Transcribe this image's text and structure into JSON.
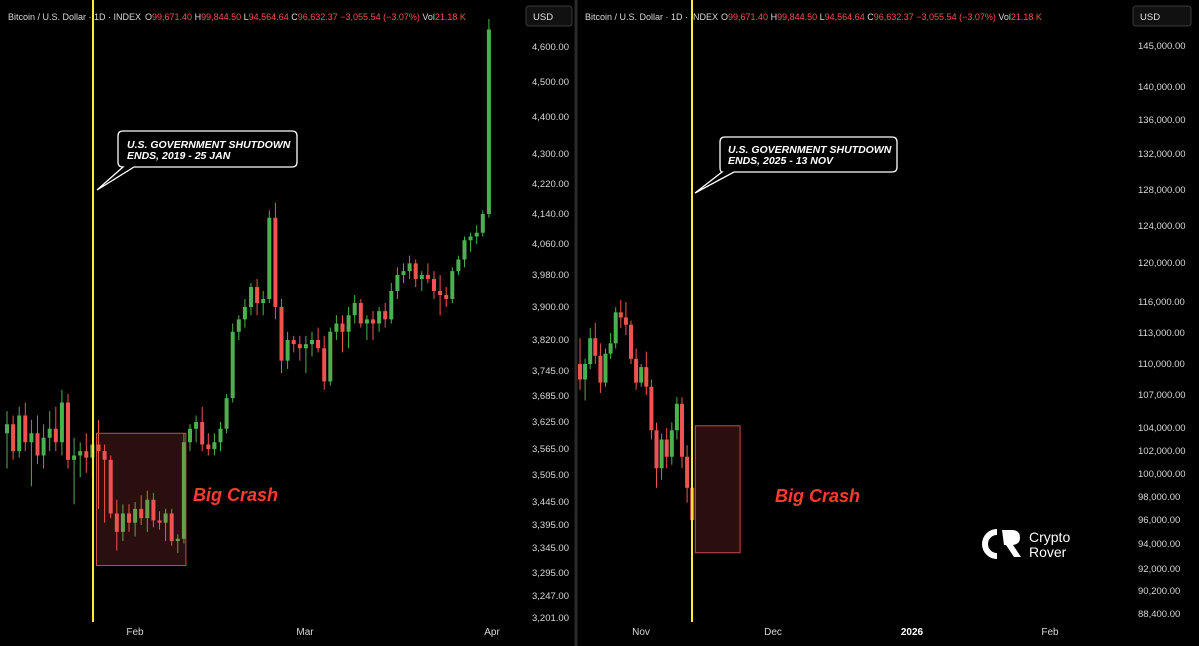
{
  "header": {
    "symbol": "Bitcoin / U.S. Dollar",
    "interval": "1D",
    "source": "INDEX",
    "open_label": "O",
    "open_value": "99,671.40",
    "high_label": "H",
    "high_value": "99,844.50",
    "low_label": "L",
    "low_value": "94,564.64",
    "close_label": "C",
    "close_value": "96,632.37",
    "change": "−3,055.54 (−3.07%)",
    "vol_label": "Vol",
    "vol_value": "21.18 K"
  },
  "currency_button": "USD",
  "brand": {
    "line1": "Crypto",
    "line2": "Rover"
  },
  "colors": {
    "up": "#4caf50",
    "down": "#ef5350",
    "vline": "#ffeb3b",
    "crash_text": "#ff3b30",
    "crash_box": "#ef5350"
  },
  "chart_data": [
    {
      "type": "candlestick",
      "panel": "left",
      "y_tick_labels": [
        "4,600.00",
        "4,500.00",
        "4,400.00",
        "4,300.00",
        "4,220.00",
        "4,140.00",
        "4,060.00",
        "3,980.00",
        "3,900.00",
        "3,820.00",
        "3,745.00",
        "3,685.00",
        "3,625.00",
        "3,565.00",
        "3,505.00",
        "3,445.00",
        "3,395.00",
        "3,345.00",
        "3,295.00",
        "3,247.00",
        "3,201.00"
      ],
      "x_tick_labels": [
        "Feb",
        "Mar",
        "Apr"
      ],
      "event_line_label": "U.S. GOVERNMENT SHUTDOWN ENDS, 2019 - 25 JAN",
      "annotation": "Big Crash",
      "candles": [
        {
          "o": 3600,
          "h": 3650,
          "l": 3520,
          "c": 3620
        },
        {
          "o": 3620,
          "h": 3640,
          "l": 3540,
          "c": 3560
        },
        {
          "o": 3560,
          "h": 3660,
          "l": 3545,
          "c": 3640
        },
        {
          "o": 3640,
          "h": 3670,
          "l": 3560,
          "c": 3580
        },
        {
          "o": 3580,
          "h": 3630,
          "l": 3480,
          "c": 3600
        },
        {
          "o": 3600,
          "h": 3640,
          "l": 3530,
          "c": 3550
        },
        {
          "o": 3550,
          "h": 3620,
          "l": 3520,
          "c": 3590
        },
        {
          "o": 3590,
          "h": 3650,
          "l": 3560,
          "c": 3610
        },
        {
          "o": 3610,
          "h": 3660,
          "l": 3560,
          "c": 3580
        },
        {
          "o": 3580,
          "h": 3700,
          "l": 3550,
          "c": 3670
        },
        {
          "o": 3670,
          "h": 3690,
          "l": 3520,
          "c": 3540
        },
        {
          "o": 3540,
          "h": 3590,
          "l": 3440,
          "c": 3550
        },
        {
          "o": 3550,
          "h": 3580,
          "l": 3500,
          "c": 3560
        },
        {
          "o": 3560,
          "h": 3600,
          "l": 3510,
          "c": 3545
        },
        {
          "o": 3545,
          "h": 3590,
          "l": 3500,
          "c": 3575
        },
        {
          "o": 3575,
          "h": 3630,
          "l": 3430,
          "c": 3560
        },
        {
          "o": 3560,
          "h": 3575,
          "l": 3400,
          "c": 3540
        },
        {
          "o": 3540,
          "h": 3550,
          "l": 3410,
          "c": 3420
        },
        {
          "o": 3420,
          "h": 3450,
          "l": 3340,
          "c": 3380
        },
        {
          "o": 3380,
          "h": 3440,
          "l": 3360,
          "c": 3420
        },
        {
          "o": 3420,
          "h": 3440,
          "l": 3380,
          "c": 3400
        },
        {
          "o": 3400,
          "h": 3445,
          "l": 3370,
          "c": 3430
        },
        {
          "o": 3430,
          "h": 3460,
          "l": 3395,
          "c": 3410
        },
        {
          "o": 3410,
          "h": 3470,
          "l": 3380,
          "c": 3450
        },
        {
          "o": 3450,
          "h": 3465,
          "l": 3390,
          "c": 3405
        },
        {
          "o": 3405,
          "h": 3425,
          "l": 3385,
          "c": 3400
        },
        {
          "o": 3400,
          "h": 3430,
          "l": 3360,
          "c": 3420
        },
        {
          "o": 3420,
          "h": 3430,
          "l": 3350,
          "c": 3360
        },
        {
          "o": 3360,
          "h": 3375,
          "l": 3335,
          "c": 3365
        },
        {
          "o": 3365,
          "h": 3600,
          "l": 3355,
          "c": 3580
        },
        {
          "o": 3580,
          "h": 3620,
          "l": 3560,
          "c": 3610
        },
        {
          "o": 3610,
          "h": 3640,
          "l": 3580,
          "c": 3625
        },
        {
          "o": 3625,
          "h": 3660,
          "l": 3560,
          "c": 3575
        },
        {
          "o": 3575,
          "h": 3600,
          "l": 3550,
          "c": 3565
        },
        {
          "o": 3565,
          "h": 3600,
          "l": 3550,
          "c": 3580
        },
        {
          "o": 3580,
          "h": 3625,
          "l": 3560,
          "c": 3610
        },
        {
          "o": 3610,
          "h": 3690,
          "l": 3600,
          "c": 3680
        },
        {
          "o": 3680,
          "h": 3860,
          "l": 3670,
          "c": 3840
        },
        {
          "o": 3840,
          "h": 3880,
          "l": 3820,
          "c": 3870
        },
        {
          "o": 3870,
          "h": 3920,
          "l": 3850,
          "c": 3900
        },
        {
          "o": 3900,
          "h": 3960,
          "l": 3880,
          "c": 3950
        },
        {
          "o": 3950,
          "h": 3970,
          "l": 3880,
          "c": 3910
        },
        {
          "o": 3910,
          "h": 3940,
          "l": 3880,
          "c": 3920
        },
        {
          "o": 3920,
          "h": 4150,
          "l": 3910,
          "c": 4130
        },
        {
          "o": 4130,
          "h": 4170,
          "l": 3870,
          "c": 3900
        },
        {
          "o": 3900,
          "h": 3920,
          "l": 3740,
          "c": 3770
        },
        {
          "o": 3770,
          "h": 3840,
          "l": 3750,
          "c": 3820
        },
        {
          "o": 3820,
          "h": 3830,
          "l": 3790,
          "c": 3810
        },
        {
          "o": 3810,
          "h": 3830,
          "l": 3770,
          "c": 3800
        },
        {
          "o": 3800,
          "h": 3830,
          "l": 3740,
          "c": 3810
        },
        {
          "o": 3810,
          "h": 3840,
          "l": 3780,
          "c": 3820
        },
        {
          "o": 3820,
          "h": 3850,
          "l": 3790,
          "c": 3800
        },
        {
          "o": 3800,
          "h": 3830,
          "l": 3700,
          "c": 3720
        },
        {
          "o": 3720,
          "h": 3850,
          "l": 3710,
          "c": 3840
        },
        {
          "o": 3840,
          "h": 3880,
          "l": 3820,
          "c": 3860
        },
        {
          "o": 3860,
          "h": 3880,
          "l": 3790,
          "c": 3840
        },
        {
          "o": 3840,
          "h": 3900,
          "l": 3800,
          "c": 3880
        },
        {
          "o": 3880,
          "h": 3930,
          "l": 3860,
          "c": 3910
        },
        {
          "o": 3910,
          "h": 3920,
          "l": 3850,
          "c": 3860
        },
        {
          "o": 3860,
          "h": 3880,
          "l": 3820,
          "c": 3870
        },
        {
          "o": 3870,
          "h": 3890,
          "l": 3820,
          "c": 3860
        },
        {
          "o": 3860,
          "h": 3900,
          "l": 3840,
          "c": 3890
        },
        {
          "o": 3890,
          "h": 3910,
          "l": 3850,
          "c": 3870
        },
        {
          "o": 3870,
          "h": 3960,
          "l": 3860,
          "c": 3940
        },
        {
          "o": 3940,
          "h": 4000,
          "l": 3920,
          "c": 3980
        },
        {
          "o": 3980,
          "h": 4010,
          "l": 3960,
          "c": 3990
        },
        {
          "o": 3990,
          "h": 4030,
          "l": 3970,
          "c": 4010
        },
        {
          "o": 4010,
          "h": 4020,
          "l": 3950,
          "c": 3970
        },
        {
          "o": 3970,
          "h": 3990,
          "l": 3940,
          "c": 3980
        },
        {
          "o": 3980,
          "h": 4010,
          "l": 3960,
          "c": 3970
        },
        {
          "o": 3970,
          "h": 3990,
          "l": 3920,
          "c": 3940
        },
        {
          "o": 3940,
          "h": 3980,
          "l": 3880,
          "c": 3930
        },
        {
          "o": 3930,
          "h": 3950,
          "l": 3900,
          "c": 3920
        },
        {
          "o": 3920,
          "h": 4000,
          "l": 3910,
          "c": 3990
        },
        {
          "o": 3990,
          "h": 4030,
          "l": 3980,
          "c": 4020
        },
        {
          "o": 4020,
          "h": 4080,
          "l": 4000,
          "c": 4070
        },
        {
          "o": 4070,
          "h": 4090,
          "l": 4040,
          "c": 4080
        },
        {
          "o": 4080,
          "h": 4110,
          "l": 4060,
          "c": 4090
        },
        {
          "o": 4090,
          "h": 4150,
          "l": 4080,
          "c": 4140
        },
        {
          "o": 4140,
          "h": 4680,
          "l": 4130,
          "c": 4650
        }
      ],
      "crash_box": {
        "start_index": 15,
        "end_index": 29,
        "low": 3310,
        "high": 3600
      }
    },
    {
      "type": "candlestick",
      "panel": "right",
      "y_tick_labels": [
        "145,000.00",
        "140,000.00",
        "136,000.00",
        "132,000.00",
        "128,000.00",
        "124,000.00",
        "120,000.00",
        "116,000.00",
        "113,000.00",
        "110,000.00",
        "107,000.00",
        "104,000.00",
        "102,000.00",
        "100,000.00",
        "98,000.00",
        "96,000.00",
        "94,000.00",
        "92,000.00",
        "90,200.00",
        "88,400.00"
      ],
      "x_tick_labels": [
        "Nov",
        "Dec",
        "2026",
        "Feb"
      ],
      "event_line_label": "U.S. GOVERNMENT SHUTDOWN ENDS, 2025 - 13 NOV",
      "annotation": "Big Crash",
      "candles": [
        {
          "o": 110000,
          "h": 112500,
          "l": 107500,
          "c": 108500
        },
        {
          "o": 108500,
          "h": 110500,
          "l": 106500,
          "c": 110000
        },
        {
          "o": 110000,
          "h": 113500,
          "l": 109500,
          "c": 112500
        },
        {
          "o": 112500,
          "h": 114000,
          "l": 110000,
          "c": 110800
        },
        {
          "o": 110800,
          "h": 112000,
          "l": 107200,
          "c": 108200
        },
        {
          "o": 108200,
          "h": 111500,
          "l": 107800,
          "c": 111000
        },
        {
          "o": 111000,
          "h": 113000,
          "l": 110500,
          "c": 112000
        },
        {
          "o": 112000,
          "h": 115500,
          "l": 111500,
          "c": 115000
        },
        {
          "o": 115000,
          "h": 116200,
          "l": 113500,
          "c": 114500
        },
        {
          "o": 114500,
          "h": 116000,
          "l": 112800,
          "c": 113800
        },
        {
          "o": 113800,
          "h": 114200,
          "l": 110000,
          "c": 110500
        },
        {
          "o": 110500,
          "h": 111500,
          "l": 107500,
          "c": 108200
        },
        {
          "o": 108200,
          "h": 110000,
          "l": 107800,
          "c": 109700
        },
        {
          "o": 109700,
          "h": 111200,
          "l": 107000,
          "c": 107800
        },
        {
          "o": 107800,
          "h": 108500,
          "l": 103000,
          "c": 103800
        },
        {
          "o": 103800,
          "h": 104500,
          "l": 98800,
          "c": 100500
        },
        {
          "o": 100500,
          "h": 103500,
          "l": 99500,
          "c": 103000
        },
        {
          "o": 103000,
          "h": 104000,
          "l": 100500,
          "c": 101500
        },
        {
          "o": 101500,
          "h": 104500,
          "l": 100800,
          "c": 103800
        },
        {
          "o": 103800,
          "h": 106800,
          "l": 103000,
          "c": 106200
        },
        {
          "o": 106200,
          "h": 106800,
          "l": 100500,
          "c": 101500
        },
        {
          "o": 101500,
          "h": 102500,
          "l": 97500,
          "c": 98800
        },
        {
          "o": 98800,
          "h": 99800,
          "l": 95000,
          "c": 96000
        }
      ],
      "crash_box": {
        "start_index": 23,
        "end_index": 31,
        "low": 93300,
        "high": 104200
      }
    }
  ]
}
